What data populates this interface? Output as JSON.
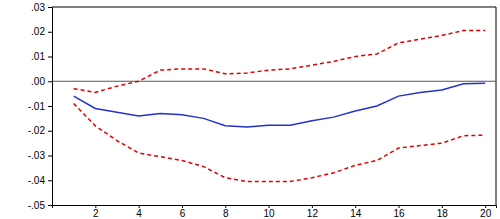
{
  "chart_data": {
    "type": "line",
    "x": [
      1,
      2,
      3,
      4,
      5,
      6,
      7,
      8,
      9,
      10,
      11,
      12,
      13,
      14,
      15,
      16,
      17,
      18,
      19,
      20
    ],
    "xlim": [
      0,
      20.5
    ],
    "xticks": [
      2,
      4,
      6,
      8,
      10,
      12,
      14,
      16,
      18,
      20
    ],
    "ylim": [
      -0.05,
      0.03
    ],
    "yticks": [
      {
        "value": -0.05,
        "label": "-.05"
      },
      {
        "value": -0.04,
        "label": "-.04"
      },
      {
        "value": -0.03,
        "label": "-.03"
      },
      {
        "value": -0.02,
        "label": "-.02"
      },
      {
        "value": -0.01,
        "label": "-.01"
      },
      {
        "value": 0,
        "label": ".00"
      },
      {
        "value": 0.01,
        "label": ".01"
      },
      {
        "value": 0.02,
        "label": ".02"
      },
      {
        "value": 0.03,
        "label": ".03"
      }
    ],
    "grid": false,
    "series": [
      {
        "color": "#2233cc",
        "line_style": "solid",
        "values": [
          -0.006,
          -0.011,
          -0.0125,
          -0.014,
          -0.013,
          -0.0135,
          -0.015,
          -0.018,
          -0.0185,
          -0.0178,
          -0.0178,
          -0.016,
          -0.0145,
          -0.012,
          -0.01,
          -0.006,
          -0.0045,
          -0.0035,
          -0.001,
          -0.0008
        ]
      },
      {
        "color": "#e00000",
        "line_style": "dashed",
        "values": [
          -0.003,
          -0.0045,
          -0.002,
          0.0,
          0.0045,
          0.005,
          0.005,
          0.003,
          0.0033,
          0.0045,
          0.005,
          0.0065,
          0.008,
          0.01,
          0.011,
          0.0155,
          0.017,
          0.0185,
          0.0205,
          0.0205
        ]
      },
      {
        "color": "#e00000",
        "line_style": "dashed",
        "values": [
          -0.009,
          -0.018,
          -0.024,
          -0.029,
          -0.0305,
          -0.032,
          -0.0345,
          -0.039,
          -0.0405,
          -0.0405,
          -0.0405,
          -0.039,
          -0.037,
          -0.034,
          -0.032,
          -0.027,
          -0.026,
          -0.025,
          -0.022,
          -0.0218
        ]
      }
    ]
  }
}
